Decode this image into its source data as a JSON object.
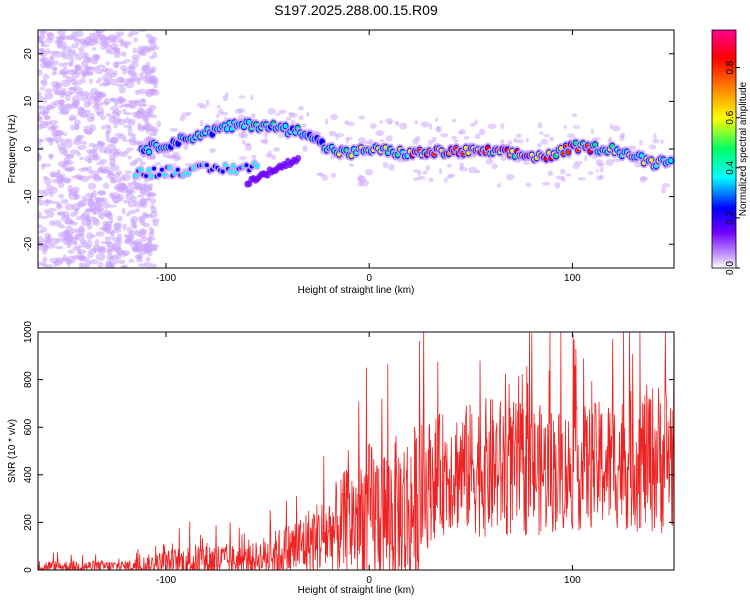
{
  "title": "S197.2025.288.00.15.R09",
  "chart_data": [
    {
      "type": "heatmap",
      "xlabel": "Height of straight line (km)",
      "ylabel": "Frequency (Hz)",
      "xlim": [
        -163,
        150
      ],
      "ylim": [
        -25,
        25
      ],
      "xticks": [
        -100,
        0,
        100
      ],
      "yticks": [
        -20,
        -10,
        0,
        10,
        20
      ],
      "colorbar": {
        "label": "Normalized spectral amplitude",
        "range": [
          0,
          0.95
        ],
        "ticks": [
          "0.0",
          "0.2",
          "0.4",
          "0.6",
          "0.8"
        ],
        "colors": [
          "#ffffff",
          "#c9a0ff",
          "#7000ff",
          "#0000ff",
          "#00ffff",
          "#00ff66",
          "#ffff00",
          "#ff8800",
          "#ff0000",
          "#ff0090"
        ]
      },
      "ridge": {
        "description_points_x": [
          -110,
          -95,
          -80,
          -65,
          -50,
          -40,
          -30,
          -25,
          -20,
          -10,
          0,
          20,
          40,
          60,
          80,
          90,
          100,
          120,
          140,
          148
        ],
        "description_points_y": [
          0,
          1.5,
          3.5,
          5,
          5,
          4,
          3.5,
          1.5,
          0,
          -1,
          0,
          -1,
          -0.5,
          -0.5,
          -1.5,
          -1.5,
          0.5,
          0,
          -3,
          -2
        ]
      }
    },
    {
      "type": "line",
      "xlabel": "Height of straight line (km)",
      "ylabel": "SNR (10 * v/v)",
      "xlim": [
        -163,
        150
      ],
      "ylim": [
        0,
        1000
      ],
      "xticks": [
        -100,
        0,
        100
      ],
      "yticks": [
        0,
        200,
        400,
        600,
        800,
        1000
      ],
      "color": "#ee2222",
      "envelope_x": [
        -163,
        -120,
        -100,
        -80,
        -60,
        -40,
        -20,
        -5,
        0,
        10,
        20,
        30,
        40,
        60,
        80,
        100,
        120,
        140,
        150
      ],
      "envelope_base": [
        15,
        15,
        25,
        40,
        40,
        80,
        150,
        220,
        240,
        230,
        230,
        380,
        420,
        430,
        420,
        420,
        450,
        470,
        480
      ],
      "envelope_amp": [
        25,
        25,
        60,
        80,
        60,
        120,
        180,
        280,
        300,
        320,
        380,
        260,
        260,
        300,
        280,
        260,
        280,
        320,
        340
      ]
    }
  ]
}
